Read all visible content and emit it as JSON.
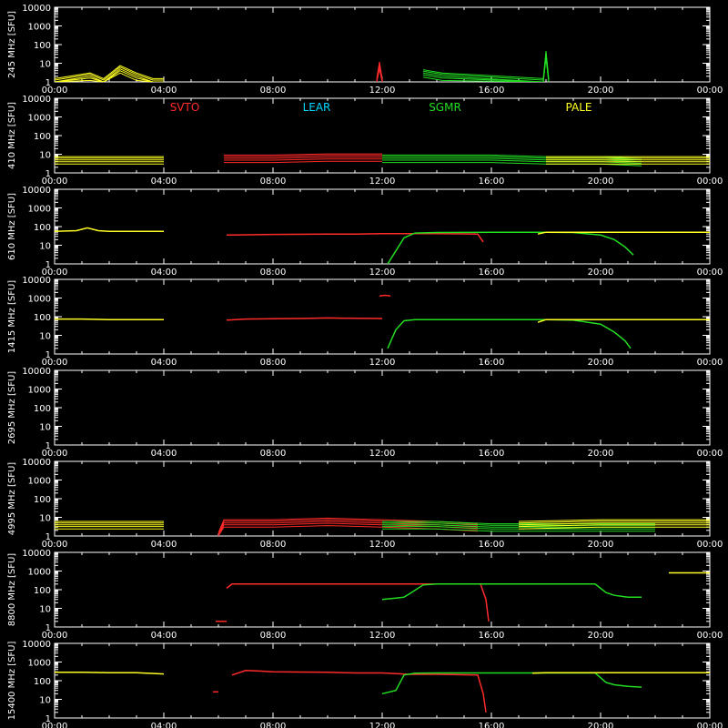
{
  "colors": {
    "background": "#000000",
    "axes": "#ffffff",
    "SVTO": "#ff2a2a",
    "LEAR": "#00d8ff",
    "SGMR": "#22dd22",
    "PALE": "#ffff22"
  },
  "chart_data": {
    "type": "line",
    "x_unit": "UT hours",
    "x_range": [
      0,
      24
    ],
    "x_ticks": [
      "00:00",
      "04:00",
      "08:00",
      "12:00",
      "16:00",
      "20:00",
      "00:00"
    ],
    "y_scale": "log",
    "y_ticks": [
      "1",
      "10",
      "100",
      "1000",
      "10000"
    ],
    "legend": {
      "placement": "top, inside second panel",
      "items": [
        {
          "name": "SVTO",
          "color_key": "SVTO"
        },
        {
          "name": "LEAR",
          "color_key": "LEAR"
        },
        {
          "name": "SGMR",
          "color_key": "SGMR"
        },
        {
          "name": "PALE",
          "color_key": "PALE"
        }
      ]
    },
    "panels": [
      {
        "ylabel": "245 MHz [SFU]",
        "ylim": [
          1,
          10000
        ],
        "band": true,
        "series": [
          {
            "station": "PALE",
            "points": [
              [
                0.0,
                1
              ],
              [
                1.3,
                2
              ],
              [
                1.8,
                1
              ],
              [
                2.4,
                5
              ],
              [
                3.0,
                2
              ],
              [
                3.6,
                1
              ],
              [
                4.0,
                1
              ]
            ]
          },
          {
            "station": "SVTO",
            "points": [
              [
                11.8,
                1
              ],
              [
                11.9,
                8
              ],
              [
                12.0,
                1
              ]
            ]
          },
          {
            "station": "SGMR",
            "points": [
              [
                13.5,
                3
              ],
              [
                14.2,
                2
              ],
              [
                17.9,
                1
              ],
              [
                18.0,
                30
              ],
              [
                18.1,
                1
              ]
            ]
          }
        ]
      },
      {
        "ylabel": "410 MHz [SFU]",
        "ylim": [
          1,
          10000
        ],
        "band": true,
        "series": [
          {
            "station": "PALE",
            "points": [
              [
                0.0,
                5
              ],
              [
                2.0,
                5
              ],
              [
                4.0,
                5
              ]
            ]
          },
          {
            "station": "SVTO",
            "points": [
              [
                6.2,
                6
              ],
              [
                8.0,
                6
              ],
              [
                10.0,
                7
              ],
              [
                12.0,
                7
              ]
            ]
          },
          {
            "station": "SGMR",
            "points": [
              [
                12.0,
                6
              ],
              [
                14.0,
                6
              ],
              [
                16.0,
                6
              ],
              [
                18.0,
                5
              ],
              [
                20.0,
                5
              ],
              [
                21.5,
                4
              ]
            ]
          },
          {
            "station": "PALE",
            "points": [
              [
                18.0,
                5
              ],
              [
                20.0,
                5
              ],
              [
                22.0,
                5
              ],
              [
                24.0,
                5
              ]
            ]
          }
        ]
      },
      {
        "ylabel": "610 MHz [SFU]",
        "ylim": [
          1,
          10000
        ],
        "band": false,
        "series": [
          {
            "station": "PALE",
            "points": [
              [
                0.0,
                55
              ],
              [
                0.8,
                60
              ],
              [
                1.2,
                85
              ],
              [
                1.6,
                60
              ],
              [
                2.0,
                55
              ],
              [
                3.0,
                55
              ],
              [
                4.0,
                55
              ]
            ]
          },
          {
            "station": "SVTO",
            "points": [
              [
                6.3,
                35
              ],
              [
                8.0,
                38
              ],
              [
                10.0,
                40
              ],
              [
                11.0,
                40
              ],
              [
                12.0,
                42
              ],
              [
                13.0,
                42
              ],
              [
                14.0,
                42
              ],
              [
                15.5,
                40
              ],
              [
                15.7,
                15
              ]
            ]
          },
          {
            "station": "SGMR",
            "points": [
              [
                12.2,
                1
              ],
              [
                12.5,
                5
              ],
              [
                12.8,
                25
              ],
              [
                13.2,
                45
              ],
              [
                14.0,
                48
              ],
              [
                16.0,
                50
              ],
              [
                18.0,
                50
              ],
              [
                19.0,
                48
              ],
              [
                20.0,
                35
              ],
              [
                20.5,
                20
              ],
              [
                20.9,
                8
              ],
              [
                21.2,
                3
              ]
            ]
          },
          {
            "station": "PALE",
            "points": [
              [
                17.7,
                40
              ],
              [
                18.0,
                50
              ],
              [
                20.0,
                50
              ],
              [
                22.0,
                50
              ],
              [
                24.0,
                50
              ]
            ]
          }
        ]
      },
      {
        "ylabel": "1415 MHz [SFU]",
        "ylim": [
          1,
          10000
        ],
        "band": false,
        "series": [
          {
            "station": "PALE",
            "points": [
              [
                0.0,
                75
              ],
              [
                1.0,
                75
              ],
              [
                2.0,
                70
              ],
              [
                3.0,
                70
              ],
              [
                4.0,
                70
              ]
            ]
          },
          {
            "station": "SVTO",
            "points": [
              [
                6.3,
                65
              ],
              [
                7.0,
                75
              ],
              [
                8.0,
                78
              ],
              [
                9.0,
                80
              ],
              [
                10.0,
                85
              ],
              [
                11.0,
                82
              ],
              [
                12.0,
                80
              ]
            ]
          },
          {
            "station": "SVTO",
            "points": [
              [
                11.9,
                1300
              ],
              [
                12.1,
                1400
              ],
              [
                12.3,
                1300
              ]
            ]
          },
          {
            "station": "SGMR",
            "points": [
              [
                12.2,
                2
              ],
              [
                12.5,
                20
              ],
              [
                12.8,
                60
              ],
              [
                13.2,
                70
              ],
              [
                14.0,
                70
              ],
              [
                16.0,
                70
              ],
              [
                18.0,
                70
              ],
              [
                19.0,
                65
              ],
              [
                20.0,
                40
              ],
              [
                20.5,
                15
              ],
              [
                20.9,
                5
              ],
              [
                21.1,
                2
              ]
            ]
          },
          {
            "station": "PALE",
            "points": [
              [
                17.7,
                50
              ],
              [
                18.0,
                70
              ],
              [
                20.0,
                70
              ],
              [
                22.0,
                70
              ],
              [
                24.0,
                70
              ]
            ]
          }
        ]
      },
      {
        "ylabel": "2695 MHz [SFU]",
        "ylim": [
          1,
          10000
        ],
        "band": false,
        "series": []
      },
      {
        "ylabel": "4995 MHz [SFU]",
        "ylim": [
          1,
          10000
        ],
        "band": true,
        "series": [
          {
            "station": "PALE",
            "points": [
              [
                0.0,
                4
              ],
              [
                2.0,
                4
              ],
              [
                4.0,
                4
              ]
            ]
          },
          {
            "station": "SVTO",
            "points": [
              [
                6.0,
                1
              ],
              [
                6.2,
                5
              ],
              [
                8.0,
                5
              ],
              [
                10.0,
                6
              ],
              [
                12.0,
                5
              ],
              [
                14.0,
                4
              ],
              [
                15.5,
                3
              ]
            ]
          },
          {
            "station": "SGMR",
            "points": [
              [
                12.0,
                4
              ],
              [
                14.0,
                4
              ],
              [
                16.0,
                3
              ],
              [
                18.0,
                3
              ],
              [
                20.0,
                3
              ],
              [
                22.0,
                3
              ]
            ]
          },
          {
            "station": "PALE",
            "points": [
              [
                17.0,
                4
              ],
              [
                20.0,
                5
              ],
              [
                24.0,
                5
              ]
            ]
          }
        ]
      },
      {
        "ylabel": "8800 MHz [SFU]",
        "ylim": [
          1,
          10000
        ],
        "band": false,
        "series": [
          {
            "station": "SVTO",
            "points": [
              [
                5.9,
                2
              ],
              [
                6.3,
                2
              ]
            ]
          },
          {
            "station": "SVTO",
            "points": [
              [
                6.3,
                120
              ],
              [
                6.5,
                200
              ],
              [
                8.0,
                200
              ],
              [
                10.0,
                200
              ],
              [
                12.0,
                200
              ],
              [
                14.0,
                200
              ],
              [
                15.6,
                200
              ],
              [
                15.8,
                30
              ],
              [
                15.9,
                2
              ]
            ]
          },
          {
            "station": "SGMR",
            "points": [
              [
                12.0,
                30
              ],
              [
                12.5,
                35
              ],
              [
                12.8,
                40
              ],
              [
                13.0,
                60
              ],
              [
                13.5,
                180
              ],
              [
                14.0,
                200
              ],
              [
                16.0,
                200
              ],
              [
                18.0,
                200
              ],
              [
                19.8,
                200
              ],
              [
                20.2,
                70
              ],
              [
                20.5,
                50
              ],
              [
                21.0,
                40
              ],
              [
                21.5,
                40
              ]
            ]
          },
          {
            "station": "PALE",
            "points": [
              [
                22.5,
                800
              ],
              [
                24.0,
                800
              ]
            ]
          }
        ]
      },
      {
        "ylabel": "15400 MHz [SFU]",
        "ylim": [
          1,
          10000
        ],
        "band": false,
        "series": [
          {
            "station": "PALE",
            "points": [
              [
                0.0,
                280
              ],
              [
                1.0,
                280
              ],
              [
                2.0,
                270
              ],
              [
                3.0,
                270
              ],
              [
                4.0,
                230
              ]
            ]
          },
          {
            "station": "SVTO",
            "points": [
              [
                5.8,
                25
              ],
              [
                6.0,
                25
              ]
            ]
          },
          {
            "station": "SVTO",
            "points": [
              [
                6.5,
                200
              ],
              [
                7.0,
                350
              ],
              [
                7.5,
                330
              ],
              [
                8.0,
                300
              ],
              [
                10.0,
                280
              ],
              [
                11.0,
                260
              ],
              [
                12.0,
                260
              ],
              [
                13.0,
                220
              ],
              [
                14.0,
                220
              ],
              [
                15.5,
                200
              ],
              [
                15.7,
                20
              ],
              [
                15.8,
                2
              ]
            ]
          },
          {
            "station": "SGMR",
            "points": [
              [
                12.0,
                20
              ],
              [
                12.5,
                30
              ],
              [
                12.8,
                200
              ],
              [
                13.2,
                250
              ],
              [
                14.0,
                260
              ],
              [
                16.0,
                260
              ],
              [
                18.0,
                260
              ],
              [
                19.8,
                260
              ],
              [
                20.2,
                80
              ],
              [
                20.5,
                60
              ],
              [
                21.0,
                50
              ],
              [
                21.5,
                45
              ]
            ]
          },
          {
            "station": "PALE",
            "points": [
              [
                17.5,
                250
              ],
              [
                18.0,
                270
              ],
              [
                20.0,
                270
              ],
              [
                22.0,
                270
              ],
              [
                24.0,
                270
              ]
            ]
          }
        ]
      }
    ]
  }
}
